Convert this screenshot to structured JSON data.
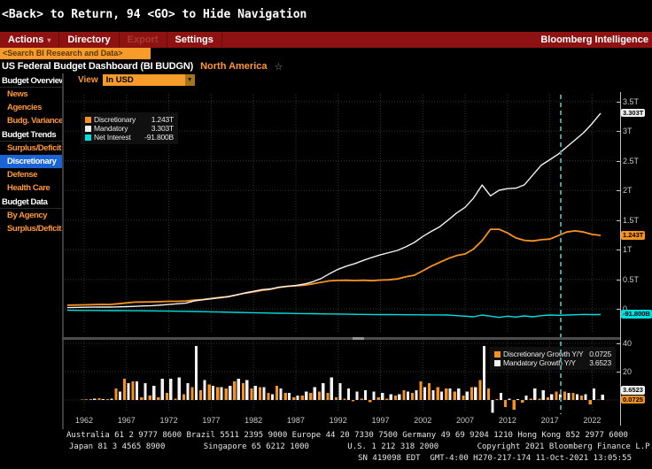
{
  "window": {
    "title": "<Back> to Return, 94 <GO> to Hide Navigation"
  },
  "toolbar": {
    "brand": "Bloomberg Intelligence",
    "items": [
      {
        "label": "Actions",
        "dropdown": true,
        "enabled": true
      },
      {
        "label": "Directory",
        "dropdown": false,
        "enabled": true
      },
      {
        "label": "Export",
        "dropdown": false,
        "enabled": false
      },
      {
        "label": "Settings",
        "dropdown": false,
        "enabled": true
      }
    ]
  },
  "search": {
    "placeholder": "<Search BI Research and Data>"
  },
  "breadcrumb": {
    "title": "US Federal Budget Dashboard (BI BUDGN)",
    "region": "North America",
    "favorite_icon": "star-outline"
  },
  "sidebar": {
    "sections": [
      {
        "header": "Budget Overview",
        "items": [
          {
            "label": "News"
          },
          {
            "label": "Agencies"
          },
          {
            "label": "Budg. Variance"
          }
        ]
      },
      {
        "header": "Budget Trends",
        "items": [
          {
            "label": "Surplus/Deficit"
          },
          {
            "label": "Discretionary",
            "selected": true
          },
          {
            "label": "Defense"
          },
          {
            "label": "Health Care"
          }
        ]
      },
      {
        "header": "Budget Data",
        "items": [
          {
            "label": "By Agency"
          },
          {
            "label": "Surplus/Deficit"
          }
        ]
      }
    ]
  },
  "view_control": {
    "label": "View",
    "value": "In USD"
  },
  "colors": {
    "accent_orange": "#f7921e",
    "series_white": "#f2f2f2",
    "series_cyan": "#00dfdf",
    "selection_blue": "#1b64d8",
    "toolbar_red": "#8e1212",
    "annotation_teal": "#4e98a2"
  },
  "chart_data": [
    {
      "type": "line",
      "panel": "top",
      "units": "USD trillions",
      "x_start": 1960,
      "x_end": 2023,
      "x_ticks": [
        1962,
        1967,
        1972,
        1977,
        1982,
        1987,
        1992,
        1997,
        2002,
        2007,
        2012,
        2017,
        2022
      ],
      "y_ticks": [
        {
          "v": 3.5,
          "label": "3.5T"
        },
        {
          "v": 3,
          "label": "3T"
        },
        {
          "v": 2.5,
          "label": "2.5T"
        },
        {
          "v": 2,
          "label": "2T"
        },
        {
          "v": 1.5,
          "label": "1.5T"
        },
        {
          "v": 1,
          "label": "1T"
        },
        {
          "v": 0.5,
          "label": "0.5T"
        },
        {
          "v": 0,
          "label": "0"
        }
      ],
      "ylim": [
        -0.4,
        3.6
      ],
      "grid": true,
      "legend_position": "top-left",
      "annotation_vline_x": 2018.3,
      "series": [
        {
          "name": "Discretionary",
          "color": "#f7921e",
          "width": 1.8,
          "last_label": "1.243T",
          "values": [
            0.065,
            0.068,
            0.072,
            0.075,
            0.079,
            0.077,
            0.09,
            0.104,
            0.118,
            0.12,
            0.122,
            0.125,
            0.131,
            0.132,
            0.138,
            0.151,
            0.161,
            0.179,
            0.196,
            0.212,
            0.24,
            0.269,
            0.291,
            0.316,
            0.333,
            0.366,
            0.384,
            0.392,
            0.405,
            0.425,
            0.452,
            0.476,
            0.484,
            0.486,
            0.481,
            0.486,
            0.479,
            0.489,
            0.494,
            0.509,
            0.545,
            0.572,
            0.646,
            0.724,
            0.789,
            0.852,
            0.903,
            0.93,
            1.013,
            1.155,
            1.347,
            1.347,
            1.285,
            1.2,
            1.16,
            1.15,
            1.17,
            1.18,
            1.24,
            1.3,
            1.32,
            1.3,
            1.26,
            1.243
          ]
        },
        {
          "name": "Mandatory",
          "color": "#f2f2f2",
          "width": 1.4,
          "last_label": "3.303T",
          "values": [
            0.026,
            0.029,
            0.031,
            0.033,
            0.034,
            0.035,
            0.037,
            0.042,
            0.047,
            0.053,
            0.058,
            0.067,
            0.077,
            0.089,
            0.1,
            0.138,
            0.157,
            0.173,
            0.189,
            0.208,
            0.239,
            0.273,
            0.3,
            0.328,
            0.341,
            0.368,
            0.387,
            0.399,
            0.423,
            0.461,
            0.516,
            0.599,
            0.671,
            0.725,
            0.769,
            0.823,
            0.872,
            0.916,
            0.952,
            0.99,
            1.051,
            1.124,
            1.225,
            1.311,
            1.39,
            1.501,
            1.621,
            1.718,
            1.873,
            2.093,
            1.91,
            2.005,
            2.031,
            2.04,
            2.096,
            2.262,
            2.429,
            2.519,
            2.613,
            2.735,
            2.855,
            2.975,
            3.13,
            3.303
          ]
        },
        {
          "name": "Net Interest",
          "color": "#00dfdf",
          "width": 1.4,
          "last_label": "-91.800B",
          "values": [
            -0.02,
            -0.021,
            -0.022,
            -0.023,
            -0.024,
            -0.025,
            -0.026,
            -0.027,
            -0.028,
            -0.029,
            -0.03,
            -0.032,
            -0.034,
            -0.036,
            -0.038,
            -0.04,
            -0.043,
            -0.046,
            -0.049,
            -0.052,
            -0.055,
            -0.058,
            -0.061,
            -0.064,
            -0.067,
            -0.07,
            -0.072,
            -0.074,
            -0.076,
            -0.078,
            -0.08,
            -0.082,
            -0.084,
            -0.086,
            -0.088,
            -0.09,
            -0.091,
            -0.092,
            -0.093,
            -0.094,
            -0.095,
            -0.096,
            -0.097,
            -0.098,
            -0.099,
            -0.1,
            -0.11,
            -0.12,
            -0.13,
            -0.1,
            -0.12,
            -0.14,
            -0.12,
            -0.135,
            -0.115,
            -0.13,
            -0.11,
            -0.1,
            -0.105,
            -0.1,
            -0.095,
            -0.09,
            -0.092,
            -0.0918
          ]
        }
      ]
    },
    {
      "type": "bar",
      "panel": "bottom",
      "units": "percent YoY",
      "x_start": 1962,
      "x_end": 2023,
      "x_ticks": [
        1962,
        1967,
        1972,
        1977,
        1982,
        1987,
        1992,
        1997,
        2002,
        2007,
        2012,
        2017,
        2022
      ],
      "y_ticks": [
        {
          "v": 40,
          "label": "40"
        },
        {
          "v": 20,
          "label": "20"
        }
      ],
      "ylim": [
        -11,
        43
      ],
      "grid": true,
      "legend_position": "top-right",
      "series": [
        {
          "name": "Discretionary Growth Y/Y",
          "color": "#f7921e",
          "last_label": "0.0725",
          "values": [
            0.4,
            0.6,
            1.2,
            0.5,
            8,
            15,
            13,
            2,
            3,
            2,
            5,
            1,
            4,
            9,
            7,
            11,
            9,
            8,
            13,
            12,
            8,
            9,
            5,
            10,
            5,
            2,
            3,
            5,
            6,
            5,
            2,
            1,
            -1,
            1,
            -1.5,
            2,
            1,
            3,
            7,
            5,
            13,
            12,
            9,
            8,
            6,
            3,
            9,
            14,
            8,
            0.5,
            -5,
            -7,
            -2,
            1,
            1,
            2,
            6,
            6,
            5,
            3,
            -3,
            0.0725
          ]
        },
        {
          "name": "Mandatory Growth Y/Y",
          "color": "#f2f2f2",
          "last_label": "3.6523",
          "values": [
            0.4,
            0.8,
            0.6,
            1,
            6,
            12,
            13,
            12,
            10,
            15,
            15,
            16,
            12,
            38,
            14,
            10,
            9,
            10,
            15,
            14,
            10,
            9,
            4,
            8,
            5,
            3,
            6,
            9,
            12,
            16,
            12,
            8,
            6,
            7,
            6,
            5,
            4,
            4,
            6,
            7,
            9,
            7,
            6,
            8,
            8,
            6,
            9,
            38,
            -9,
            5,
            1,
            0.5,
            3,
            8,
            7,
            4,
            4,
            5,
            4,
            4,
            8,
            3.6523
          ]
        }
      ]
    }
  ],
  "footer": {
    "line1": "Australia 61 2 9777 8600 Brazil 5511 2395 9000 Europe 44 20 7330 7500 Germany 49 69 9204 1210 Hong Kong 852 2977 6000",
    "line2": "Japan 81 3 4565 8900        Singapore 65 6212 1000        U.S. 1 212 318 2000        Copyright 2021 Bloomberg Finance L.P.",
    "line3": "SN 419098 EDT  GMT-4:00 H270-217-174 11-Oct-2021 13:05:55"
  }
}
